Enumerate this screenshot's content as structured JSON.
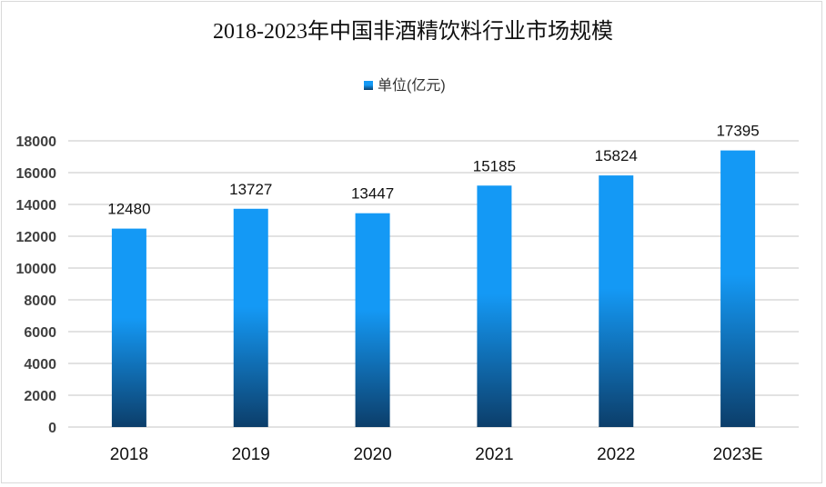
{
  "chart_data": {
    "type": "bar",
    "title": "2018-2023年中国非酒精饮料行业市场规模",
    "categories": [
      "2018",
      "2019",
      "2020",
      "2021",
      "2022",
      "2023E"
    ],
    "series": [
      {
        "name": "单位(亿元)",
        "values": [
          12480,
          13727,
          13447,
          15185,
          15824,
          17395
        ]
      }
    ],
    "ylim": [
      0,
      18000
    ],
    "yticks": [
      0,
      2000,
      4000,
      6000,
      8000,
      10000,
      12000,
      14000,
      16000,
      18000
    ],
    "grid": true,
    "legend": "top",
    "colors": {
      "bar_top": "#1499f5",
      "bar_bottom": "#0c3e6a",
      "grid": "#d9d9d9"
    }
  }
}
